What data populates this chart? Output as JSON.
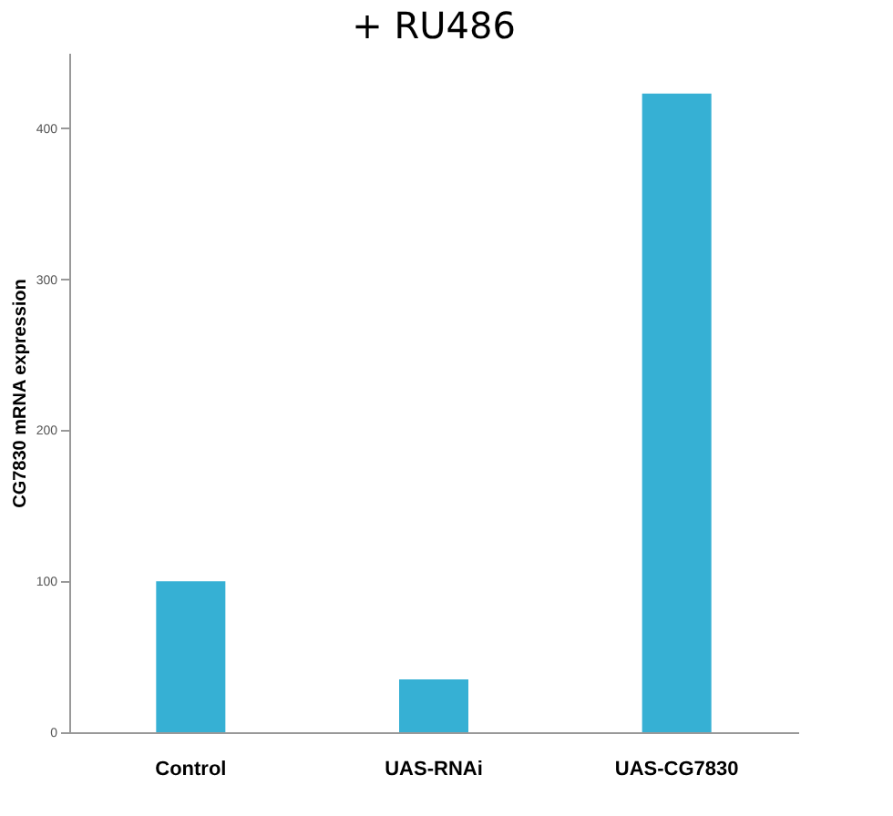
{
  "chart_data": {
    "type": "bar",
    "title": "+ RU486",
    "ylabel": "CG7830 mRNA expression",
    "categories": [
      "Control",
      "UAS-RNAi",
      "UAS-CG7830"
    ],
    "values": [
      100,
      35,
      423
    ],
    "color": "#36b0d4",
    "ylim": [
      0,
      450
    ],
    "yticks": [
      0,
      100,
      200,
      300,
      400
    ],
    "grid": false
  }
}
